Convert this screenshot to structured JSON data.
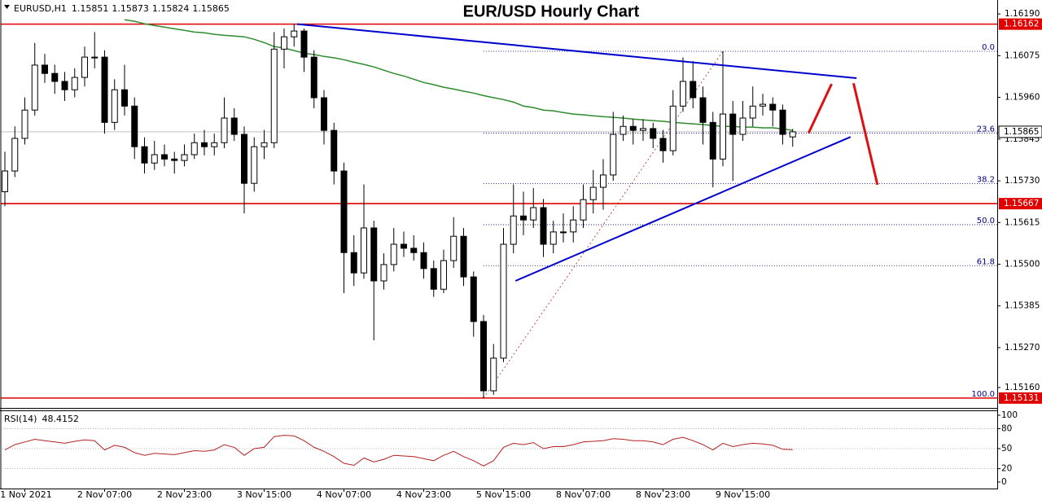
{
  "chart_data": {
    "type": "candlestick",
    "title": "EUR/USD Hourly Chart",
    "symbol": "EURUSD,H1",
    "categories": [
      null,
      null,
      "1 Nov 2021",
      null,
      null,
      null,
      null,
      null,
      null,
      null,
      "2 Nov 07:00",
      null,
      null,
      null,
      null,
      null,
      null,
      null,
      "2 Nov 23:00",
      null,
      null,
      null,
      null,
      null,
      null,
      null,
      "3 Nov 15:00",
      null,
      null,
      null,
      null,
      null,
      null,
      null,
      "4 Nov 07:00",
      null,
      null,
      null,
      null,
      null,
      null,
      null,
      "4 Nov 23:00",
      null,
      null,
      null,
      null,
      null,
      null,
      null,
      "5 Nov 15:00",
      null,
      null,
      null,
      null,
      null,
      null,
      null,
      "8 Nov 07:00",
      null,
      null,
      null,
      null,
      null,
      null,
      null,
      "8 Nov 23:00",
      null,
      null,
      null,
      null,
      null,
      null,
      null,
      "9 Nov 15:00",
      null,
      null,
      null,
      null,
      null
    ],
    "open": [
      1.157,
      1.15757,
      1.15847,
      1.15925,
      1.16049,
      1.16026,
      1.16004,
      1.15981,
      1.16015,
      1.16071,
      1.16071,
      1.15891,
      1.15981,
      1.15936,
      1.15824,
      1.15779,
      1.15802,
      1.1579,
      1.15786,
      1.15802,
      1.15835,
      1.15824,
      1.15835,
      1.15903,
      1.15858,
      1.15723,
      1.15824,
      1.15835,
      1.16093,
      1.16127,
      1.16143,
      1.16071,
      1.15959,
      1.15869,
      1.15757,
      1.15532,
      1.15476,
      1.156,
      1.15454,
      1.15499,
      1.15555,
      1.15544,
      1.15532,
      1.15488,
      1.15431,
      1.1551,
      1.15577,
      1.15465,
      1.15342,
      1.15151,
      1.15241,
      1.15555,
      1.15633,
      1.15622,
      1.15656,
      1.15555,
      1.15589,
      1.15589,
      1.15622,
      1.15678,
      1.15712,
      1.15746,
      1.15858,
      1.1588,
      1.15869,
      1.15874,
      1.15847,
      1.15813,
      1.15936,
      1.16004,
      1.15959,
      1.15891,
      1.1579,
      1.15914,
      1.15858,
      1.15903,
      1.15936,
      1.15941,
      1.15925,
      1.15851
    ],
    "high": [
      1.1581,
      1.1588,
      1.1596,
      1.1611,
      1.1608,
      1.1605,
      1.1603,
      1.1604,
      1.161,
      1.1614,
      1.1609,
      1.1601,
      1.1605,
      1.1596,
      1.1585,
      1.1584,
      1.1583,
      1.1581,
      1.1583,
      1.1586,
      1.1587,
      1.1586,
      1.1596,
      1.1593,
      1.1588,
      1.1585,
      1.1587,
      1.1614,
      1.1615,
      1.16162,
      1.1615,
      1.1609,
      1.1598,
      1.1589,
      1.1578,
      1.1558,
      1.1572,
      1.1562,
      1.1553,
      1.156,
      1.1559,
      1.1558,
      1.1556,
      1.1551,
      1.1554,
      1.1563,
      1.156,
      1.1548,
      1.1536,
      1.1528,
      1.156,
      1.1572,
      1.157,
      1.1571,
      1.1568,
      1.1562,
      1.1564,
      1.1566,
      1.1572,
      1.1576,
      1.1579,
      1.1592,
      1.1591,
      1.159,
      1.159,
      1.1589,
      1.1587,
      1.1598,
      1.1607,
      1.1606,
      1.1599,
      1.1592,
      1.16087,
      1.1595,
      1.1595,
      1.1599,
      1.1597,
      1.1596,
      1.1594,
      1.15873
    ],
    "low": [
      1.1566,
      1.1574,
      1.1583,
      1.1591,
      1.16,
      1.1597,
      1.1595,
      1.1596,
      1.1599,
      1.1604,
      1.1586,
      1.1587,
      1.1591,
      1.1579,
      1.1575,
      1.1576,
      1.1577,
      1.1575,
      1.1577,
      1.1579,
      1.158,
      1.158,
      1.1582,
      1.1584,
      1.1564,
      1.157,
      1.1579,
      1.1582,
      1.1604,
      1.161,
      1.1603,
      1.1593,
      1.1583,
      1.1572,
      1.1542,
      1.1544,
      1.1546,
      1.1529,
      1.1543,
      1.1548,
      1.1552,
      1.1551,
      1.1546,
      1.1541,
      1.1542,
      1.1549,
      1.1544,
      1.153,
      1.15131,
      1.1514,
      1.1523,
      1.1553,
      1.1558,
      1.156,
      1.1552,
      1.1553,
      1.1556,
      1.1556,
      1.156,
      1.1564,
      1.1565,
      1.1573,
      1.1584,
      1.1583,
      1.1584,
      1.1582,
      1.1578,
      1.158,
      1.1592,
      1.1593,
      1.1583,
      1.15712,
      1.1577,
      1.1573,
      1.1584,
      1.1588,
      1.1591,
      1.1588,
      1.1583,
      1.15824
    ],
    "close": [
      1.15757,
      1.15847,
      1.15925,
      1.16049,
      1.16026,
      1.16004,
      1.15981,
      1.16015,
      1.16071,
      1.16071,
      1.15891,
      1.15981,
      1.15936,
      1.15824,
      1.15779,
      1.15802,
      1.1579,
      1.15786,
      1.15802,
      1.15835,
      1.15824,
      1.15835,
      1.15903,
      1.15858,
      1.15723,
      1.15824,
      1.15835,
      1.16093,
      1.16127,
      1.16143,
      1.16071,
      1.15959,
      1.15869,
      1.15757,
      1.15532,
      1.15476,
      1.156,
      1.15454,
      1.15499,
      1.15555,
      1.15544,
      1.15532,
      1.15488,
      1.15431,
      1.1551,
      1.15577,
      1.15465,
      1.15342,
      1.15151,
      1.15241,
      1.15555,
      1.15633,
      1.15622,
      1.15656,
      1.15555,
      1.15589,
      1.15589,
      1.15622,
      1.15678,
      1.15712,
      1.15746,
      1.15858,
      1.1588,
      1.15869,
      1.15874,
      1.15847,
      1.15813,
      1.15936,
      1.16004,
      1.15959,
      1.15891,
      1.1579,
      1.15914,
      1.15858,
      1.15903,
      1.15936,
      1.15941,
      1.15925,
      1.15858,
      1.15865
    ],
    "ma": {
      "color": "#2e8b2e",
      "values": [
        null,
        null,
        null,
        null,
        null,
        null,
        null,
        null,
        null,
        null,
        null,
        null,
        1.16174,
        1.1617,
        1.16163,
        1.16158,
        1.16154,
        1.16149,
        1.16145,
        1.1614,
        1.16138,
        1.16134,
        1.16131,
        1.16129,
        1.16127,
        1.1612,
        1.16111,
        1.161,
        1.16096,
        1.16089,
        1.16082,
        1.16078,
        1.16073,
        1.16069,
        1.16064,
        1.16057,
        1.16051,
        1.16044,
        1.16035,
        1.16026,
        1.16019,
        1.1601,
        1.16001,
        1.15995,
        1.15988,
        1.15983,
        1.15977,
        1.15972,
        1.15965,
        1.15959,
        1.15954,
        1.15947,
        1.15936,
        1.15932,
        1.15925,
        1.15923,
        1.15918,
        1.15914,
        1.15912,
        1.15909,
        1.15907,
        1.15905,
        1.15903,
        1.159,
        1.15898,
        1.15896,
        1.15894,
        1.15891,
        1.15889,
        1.15887,
        1.15885,
        1.15882,
        1.1588,
        1.1588,
        1.15878,
        1.15878,
        1.15876,
        1.15876,
        1.15873,
        1.15869
      ]
    },
    "ylim": [
      1.15106,
      1.16224
    ],
    "yticks": [
      {
        "value": 1.1619,
        "label": "1.16190"
      },
      1.16075,
      {
        "value": 1.1596,
        "label": "1.15960"
      },
      1.15845,
      {
        "value": 1.1573,
        "label": "1.15730"
      },
      1.15615,
      {
        "value": 1.155,
        "label": "1.15500"
      },
      1.15385,
      {
        "value": 1.1527,
        "label": "1.15270"
      },
      {
        "value": 1.1516,
        "label": "1.15160"
      }
    ],
    "levels": {
      "color": "#e00000",
      "values": [
        1.16162,
        1.15667,
        1.15131
      ]
    },
    "fib": {
      "color": "#000080",
      "from_index": 48,
      "levels": [
        {
          "label": "0.0",
          "price": 1.16087
        },
        {
          "label": "23.6",
          "price": 1.15861
        },
        {
          "label": "38.2",
          "price": 1.15722
        },
        {
          "label": "50.0",
          "price": 1.15609
        },
        {
          "label": "61.8",
          "price": 1.15496
        },
        {
          "label": "100.0",
          "price": 1.15131
        }
      ],
      "diagonal": [
        [
          48,
          1.15131
        ],
        [
          72,
          1.16087
        ]
      ]
    },
    "trendlines": [
      {
        "color": "#0000cd",
        "points": [
          [
            29.3,
            1.16162
          ],
          [
            85.4,
            1.16013
          ]
        ]
      },
      {
        "color": "#0000cd",
        "points": [
          [
            51.2,
            1.15454
          ],
          [
            84.8,
            1.15851
          ]
        ]
      },
      {
        "color": "#dd1111",
        "points": [
          [
            80.6,
            1.15862
          ],
          [
            82.9,
            1.15997
          ]
        ]
      },
      {
        "color": "#dd1111",
        "points": [
          [
            85.1,
            1.15999
          ],
          [
            87.5,
            1.15719
          ]
        ]
      }
    ],
    "rsi": {
      "name": "RSI(14)",
      "color": "#b22222",
      "values": [
        48,
        56,
        60,
        64,
        62,
        60,
        58,
        61,
        63,
        62,
        48,
        55,
        52,
        44,
        40,
        43,
        42,
        41,
        44,
        47,
        46,
        48,
        56,
        52,
        40,
        50,
        52,
        68,
        70,
        69,
        62,
        52,
        46,
        38,
        28,
        25,
        36,
        30,
        34,
        40,
        39,
        38,
        35,
        32,
        40,
        46,
        38,
        32,
        24,
        32,
        52,
        58,
        56,
        59,
        50,
        53,
        53,
        56,
        60,
        61,
        62,
        65,
        64,
        62,
        62,
        60,
        56,
        64,
        67,
        62,
        56,
        48,
        58,
        53,
        56,
        58,
        57,
        55,
        49,
        48.4152
      ],
      "ylim": [
        0,
        100
      ],
      "yticks": [
        100,
        80,
        50,
        20,
        0
      ]
    }
  }
}
